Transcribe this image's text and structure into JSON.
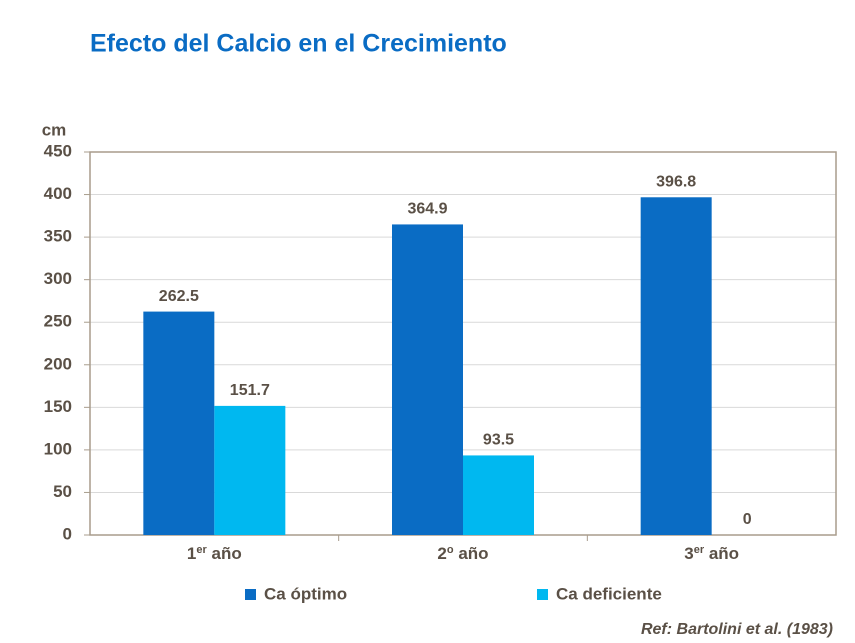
{
  "chart_data": {
    "type": "bar",
    "title": "Efecto del Calcio en el Crecimiento",
    "y_label": "cm",
    "categories": [
      [
        "1",
        "er",
        " año"
      ],
      [
        "2",
        "o",
        " año"
      ],
      [
        "3",
        "er",
        " año"
      ]
    ],
    "series": [
      {
        "name": "Ca óptimo",
        "color": "#0a6cc4",
        "values": [
          262.5,
          364.9,
          396.8
        ]
      },
      {
        "name": "Ca deficiente",
        "color": "#00b8f0",
        "values": [
          151.7,
          93.5,
          0
        ]
      }
    ],
    "ylim": [
      0,
      450
    ],
    "yticks": [
      0,
      50,
      100,
      150,
      200,
      250,
      300,
      350,
      400,
      450
    ],
    "grid": true,
    "legend": "bottom",
    "source": "Ref: Bartolini et al. (1983)"
  }
}
